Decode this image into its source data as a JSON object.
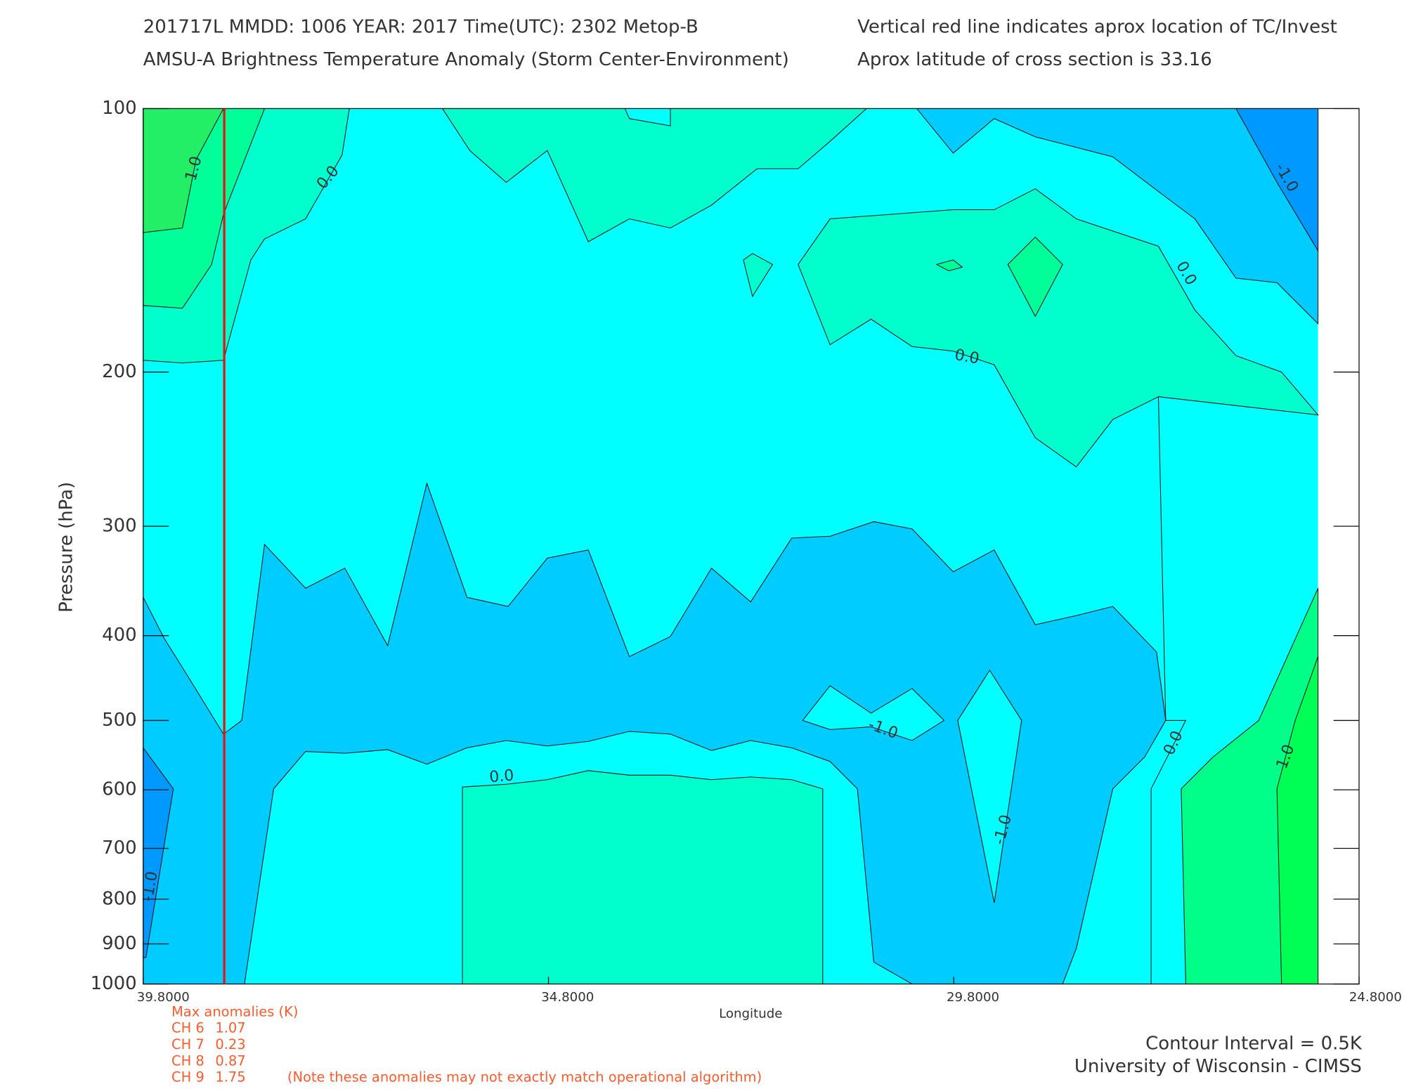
{
  "chart_data": {
    "type": "contour",
    "title_lines": [
      "201717L  MMDD: 1006 YEAR: 2017 Time(UTC): 2302 Metop-B",
      "AMSU-A Brightness Temperature Anomaly (Storm Center-Environment)"
    ],
    "info_lines": [
      "Vertical red line indicates aprox location of TC/Invest",
      "Aprox latitude of cross section is 33.16"
    ],
    "x_label": "Longitude",
    "y_label": "Pressure (hPa)",
    "xlim": [
      39.8,
      24.8
    ],
    "xticks": [
      {
        "value": 39.8,
        "label": "39.8000"
      },
      {
        "value": 34.8,
        "label": "34.8000"
      },
      {
        "value": 29.8,
        "label": "29.8000"
      },
      {
        "value": 24.8,
        "label": "24.8000"
      }
    ],
    "ylim": [
      100,
      1000
    ],
    "y_scale": "log",
    "y_reversed": true,
    "yticks": [
      100,
      200,
      300,
      400,
      500,
      600,
      700,
      800,
      900,
      1000
    ],
    "tc_longitude": 38.8,
    "tc_line_color": "#ee1111",
    "contour_labels": [
      {
        "value": 1,
        "label": "1.0"
      },
      {
        "value": 0,
        "label": "0.0"
      },
      {
        "value": -1,
        "label": "-1.0"
      },
      {
        "value": 0,
        "label": "0.0"
      },
      {
        "value": 0,
        "label": "0.0"
      },
      {
        "value": 0,
        "label": "0.0"
      },
      {
        "value": -1,
        "label": "-1.0"
      },
      {
        "value": -1,
        "label": "-1.0"
      },
      {
        "value": 0,
        "label": "0.0"
      },
      {
        "value": 1,
        "label": "1.0"
      },
      {
        "value": -1,
        "label": "-1.0"
      }
    ],
    "max_anomalies": {
      "title": "Max anomalies (K)",
      "channels": [
        {
          "label": "CH 6",
          "value": 1.07
        },
        {
          "label": "CH 7",
          "value": 0.23
        },
        {
          "label": "CH 8",
          "value": 0.87
        },
        {
          "label": "CH 9",
          "value": 1.75
        }
      ],
      "note": "(Note these anomalies may not exactly match operational algorithm)"
    },
    "footer_lines": [
      "Contour Interval = 0.5K",
      "University of Wisconsin - CIMSS"
    ]
  }
}
